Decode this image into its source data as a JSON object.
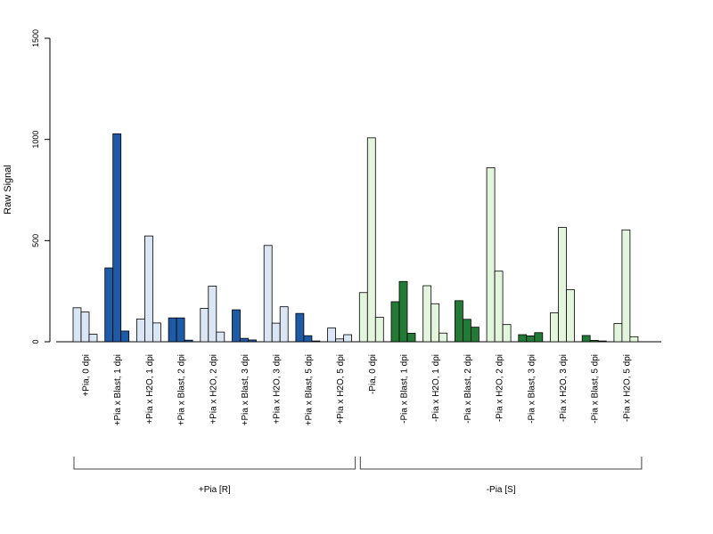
{
  "chart_data": {
    "type": "bar",
    "ylabel": "Raw Signal",
    "ylim": [
      0,
      1500
    ],
    "yticks": [
      0,
      500,
      1000,
      1500
    ],
    "grid": false,
    "legend": "none",
    "colors": {
      "plus_dark": "#1f5aa6",
      "plus_light": "#dbe6f5",
      "minus_dark": "#237a36",
      "minus_light": "#e3f5dc",
      "outline": "#000000"
    },
    "categories": [
      "+Pia, 0 dpi",
      "+Pia x Blast, 1 dpi",
      "+Pia x H2O, 1 dpi",
      "+Pia x Blast, 2 dpi",
      "+Pia x H2O, 2 dpi",
      "+Pia x Blast, 3 dpi",
      "+Pia x H2O, 3 dpi",
      "+Pia x Blast, 5 dpi",
      "+Pia x H2O, 5 dpi",
      "-Pia, 0 dpi",
      "-Pia x Blast, 1 dpi",
      "-Pia x H2O, 1 dpi",
      "-Pia x Blast, 2 dpi",
      "-Pia x H2O, 2 dpi",
      "-Pia x Blast, 3 dpi",
      "-Pia x H2O, 3 dpi",
      "-Pia x Blast, 5 dpi",
      "-Pia x H2O, 5 dpi"
    ],
    "fill": [
      "plus_light",
      "plus_dark",
      "plus_light",
      "plus_dark",
      "plus_light",
      "plus_dark",
      "plus_light",
      "plus_dark",
      "plus_light",
      "minus_light",
      "minus_dark",
      "minus_light",
      "minus_dark",
      "minus_light",
      "minus_dark",
      "minus_light",
      "minus_dark",
      "minus_light"
    ],
    "replicates": [
      [
        168,
        147,
        37
      ],
      [
        365,
        1028,
        53
      ],
      [
        112,
        523,
        93
      ],
      [
        118,
        118,
        8
      ],
      [
        165,
        275,
        48
      ],
      [
        158,
        17,
        9
      ],
      [
        476,
        92,
        173
      ],
      [
        140,
        30,
        4
      ],
      [
        68,
        14,
        35
      ],
      [
        243,
        1008,
        121
      ],
      [
        198,
        298,
        42
      ],
      [
        277,
        188,
        43
      ],
      [
        203,
        111,
        72
      ],
      [
        860,
        349,
        85
      ],
      [
        35,
        29,
        45
      ],
      [
        143,
        565,
        257
      ],
      [
        31,
        7,
        4
      ],
      [
        90,
        553,
        25
      ]
    ],
    "groups": [
      {
        "label": "+Pia [R]",
        "from": 0,
        "to": 8
      },
      {
        "label": "-Pia [S]",
        "from": 9,
        "to": 17
      }
    ]
  }
}
